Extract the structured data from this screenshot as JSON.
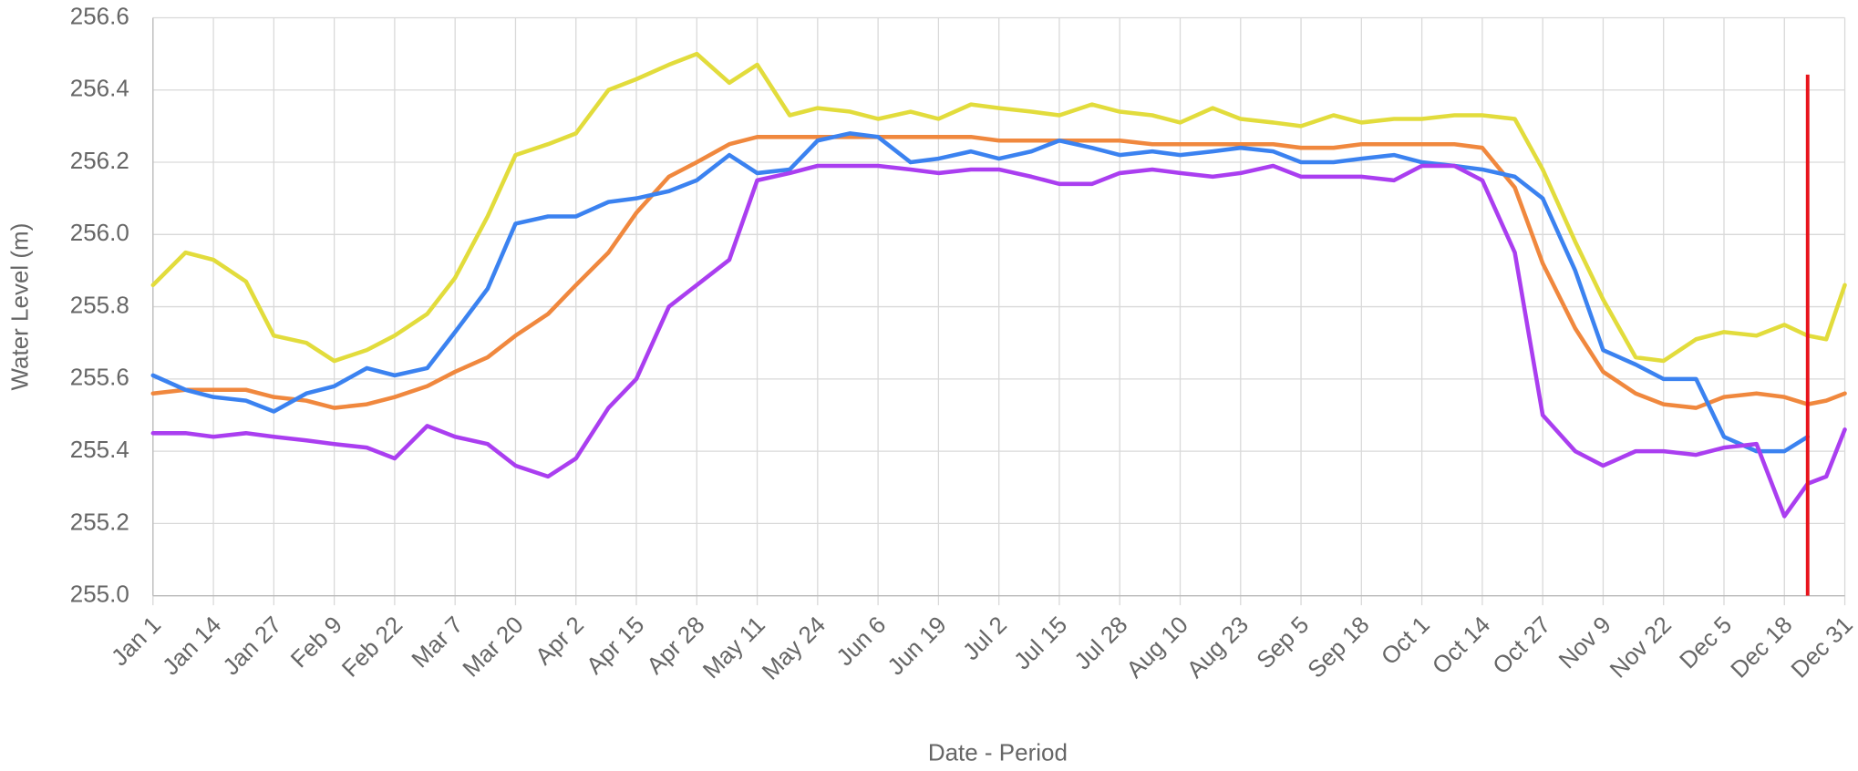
{
  "chart_data": {
    "type": "line",
    "y_label": "Water Level (m)",
    "x_label": "Date - Period",
    "xlim": [
      0,
      364
    ],
    "xticks": [
      {
        "value": 0,
        "label": "Jan 1"
      },
      {
        "value": 13,
        "label": "Jan 14"
      },
      {
        "value": 26,
        "label": "Jan 27"
      },
      {
        "value": 39,
        "label": "Feb 9"
      },
      {
        "value": 52,
        "label": "Feb 22"
      },
      {
        "value": 65,
        "label": "Mar 7"
      },
      {
        "value": 78,
        "label": "Mar 20"
      },
      {
        "value": 91,
        "label": "Apr 2"
      },
      {
        "value": 104,
        "label": "Apr 15"
      },
      {
        "value": 117,
        "label": "Apr 28"
      },
      {
        "value": 130,
        "label": "May 11"
      },
      {
        "value": 143,
        "label": "May 24"
      },
      {
        "value": 156,
        "label": "Jun 6"
      },
      {
        "value": 169,
        "label": "Jun 19"
      },
      {
        "value": 182,
        "label": "Jul 2"
      },
      {
        "value": 195,
        "label": "Jul 15"
      },
      {
        "value": 208,
        "label": "Jul 28"
      },
      {
        "value": 221,
        "label": "Aug 10"
      },
      {
        "value": 234,
        "label": "Aug 23"
      },
      {
        "value": 247,
        "label": "Sep 5"
      },
      {
        "value": 260,
        "label": "Sep 18"
      },
      {
        "value": 273,
        "label": "Oct 1"
      },
      {
        "value": 286,
        "label": "Oct 14"
      },
      {
        "value": 299,
        "label": "Oct 27"
      },
      {
        "value": 312,
        "label": "Nov 9"
      },
      {
        "value": 325,
        "label": "Nov 22"
      },
      {
        "value": 338,
        "label": "Dec 5"
      },
      {
        "value": 351,
        "label": "Dec 18"
      },
      {
        "value": 364,
        "label": "Dec 31"
      }
    ],
    "ylim": [
      255.0,
      256.6
    ],
    "yticks": [
      {
        "value": 255.0,
        "label": "255.0"
      },
      255.2,
      255.4,
      255.6,
      255.8,
      {
        "value": 256.0,
        "label": "256.0"
      },
      256.2,
      256.4,
      256.6
    ],
    "grid": true,
    "vline": {
      "x": 356,
      "color": "#e8141c"
    },
    "x": [
      0,
      7,
      13,
      20,
      26,
      33,
      39,
      46,
      52,
      59,
      65,
      72,
      78,
      85,
      91,
      98,
      104,
      111,
      117,
      124,
      130,
      137,
      143,
      150,
      156,
      163,
      169,
      176,
      182,
      189,
      195,
      202,
      208,
      215,
      221,
      228,
      234,
      241,
      247,
      254,
      260,
      267,
      273,
      280,
      286,
      293,
      299,
      306,
      312,
      319,
      325,
      332,
      338,
      345,
      351,
      356,
      360,
      364
    ],
    "series": [
      {
        "color": "#e2dc3c",
        "values": [
          255.86,
          255.95,
          255.93,
          255.87,
          255.72,
          255.7,
          255.65,
          255.68,
          255.72,
          255.78,
          255.88,
          256.05,
          256.22,
          256.25,
          256.28,
          256.4,
          256.43,
          256.47,
          256.5,
          256.42,
          256.47,
          256.33,
          256.35,
          256.34,
          256.32,
          256.34,
          256.32,
          256.36,
          256.35,
          256.34,
          256.33,
          256.36,
          256.34,
          256.33,
          256.31,
          256.35,
          256.32,
          256.31,
          256.3,
          256.33,
          256.31,
          256.32,
          256.32,
          256.33,
          256.33,
          256.32,
          256.18,
          255.98,
          255.82,
          255.66,
          255.65,
          255.71,
          255.73,
          255.72,
          255.75,
          255.72,
          255.71,
          255.86
        ]
      },
      {
        "color": "#f0883e",
        "values": [
          255.56,
          255.57,
          255.57,
          255.57,
          255.55,
          255.54,
          255.52,
          255.53,
          255.55,
          255.58,
          255.62,
          255.66,
          255.72,
          255.78,
          255.86,
          255.95,
          256.06,
          256.16,
          256.2,
          256.25,
          256.27,
          256.27,
          256.27,
          256.27,
          256.27,
          256.27,
          256.27,
          256.27,
          256.26,
          256.26,
          256.26,
          256.26,
          256.26,
          256.25,
          256.25,
          256.25,
          256.25,
          256.25,
          256.24,
          256.24,
          256.25,
          256.25,
          256.25,
          256.25,
          256.24,
          256.13,
          255.92,
          255.74,
          255.62,
          255.56,
          255.53,
          255.52,
          255.55,
          255.56,
          255.55,
          255.53,
          255.54,
          255.56
        ]
      },
      {
        "color": "#3b82f0",
        "values": [
          255.61,
          255.57,
          255.55,
          255.54,
          255.51,
          255.56,
          255.58,
          255.63,
          255.61,
          255.63,
          255.73,
          255.85,
          256.03,
          256.05,
          256.05,
          256.09,
          256.1,
          256.12,
          256.15,
          256.22,
          256.17,
          256.18,
          256.26,
          256.28,
          256.27,
          256.2,
          256.21,
          256.23,
          256.21,
          256.23,
          256.26,
          256.24,
          256.22,
          256.23,
          256.22,
          256.23,
          256.24,
          256.23,
          256.2,
          256.2,
          256.21,
          256.22,
          256.2,
          256.19,
          256.18,
          256.16,
          256.1,
          255.9,
          255.68,
          255.64,
          255.6,
          255.6,
          255.44,
          255.4,
          255.4,
          255.44,
          null,
          null
        ]
      },
      {
        "color": "#aa3ef0",
        "values": [
          255.45,
          255.45,
          255.44,
          255.45,
          255.44,
          255.43,
          255.42,
          255.41,
          255.38,
          255.47,
          255.44,
          255.42,
          255.36,
          255.33,
          255.38,
          255.52,
          255.6,
          255.8,
          255.86,
          255.93,
          256.15,
          256.17,
          256.19,
          256.19,
          256.19,
          256.18,
          256.17,
          256.18,
          256.18,
          256.16,
          256.14,
          256.14,
          256.17,
          256.18,
          256.17,
          256.16,
          256.17,
          256.19,
          256.16,
          256.16,
          256.16,
          256.15,
          256.19,
          256.19,
          256.15,
          255.95,
          255.5,
          255.4,
          255.36,
          255.4,
          255.4,
          255.39,
          255.41,
          255.42,
          255.22,
          255.31,
          255.33,
          255.46
        ]
      }
    ]
  }
}
